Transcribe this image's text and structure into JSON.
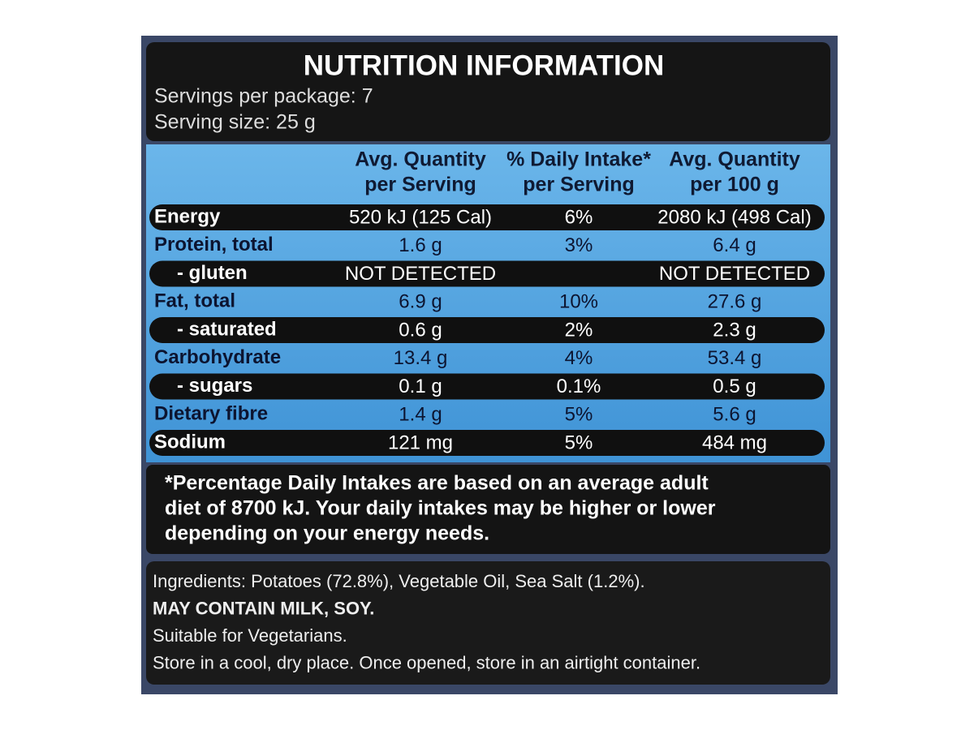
{
  "header": {
    "title": "NUTRITION INFORMATION",
    "servings": "Servings per package: 7",
    "serving_size": "Serving size: 25 g"
  },
  "table": {
    "columns": [
      [
        "Avg. Quantity",
        "per Serving"
      ],
      [
        "% Daily Intake*",
        "per Serving"
      ],
      [
        "Avg. Quantity",
        "per 100 g"
      ]
    ],
    "rows": [
      [
        "Energy",
        "520 kJ (125 Cal)",
        "6%",
        "2080 kJ (498 Cal)"
      ],
      [
        "Protein, total",
        "1.6 g",
        "3%",
        "6.4 g"
      ],
      [
        "- gluten",
        "NOT DETECTED",
        null,
        "NOT DETECTED"
      ],
      [
        "Fat, total",
        "6.9 g",
        "10%",
        "27.6 g"
      ],
      [
        "- saturated",
        "0.6 g",
        "2%",
        "2.3 g"
      ],
      [
        "Carbohydrate",
        "13.4 g",
        "4%",
        "53.4 g"
      ],
      [
        "- sugars",
        "0.1 g",
        "0.1%",
        "0.5 g"
      ],
      [
        "Dietary fibre",
        "1.4 g",
        "5%",
        "5.6 g"
      ],
      [
        "Sodium",
        "121 mg",
        "5%",
        "484 mg"
      ]
    ]
  },
  "footnote": [
    "*Percentage Daily Intakes are based on an average adult",
    "diet of 8700 kJ. Your daily intakes may be higher or lower",
    "depending on your energy needs."
  ],
  "ingredients": [
    "Ingredients: Potatoes (72.8%), Vegetable Oil, Sea Salt (1.2%).",
    "MAY CONTAIN MILK, SOY.",
    "Suitable for Vegetarians.",
    "Store in a cool, dry place. Once opened, store in an airtight container."
  ]
}
